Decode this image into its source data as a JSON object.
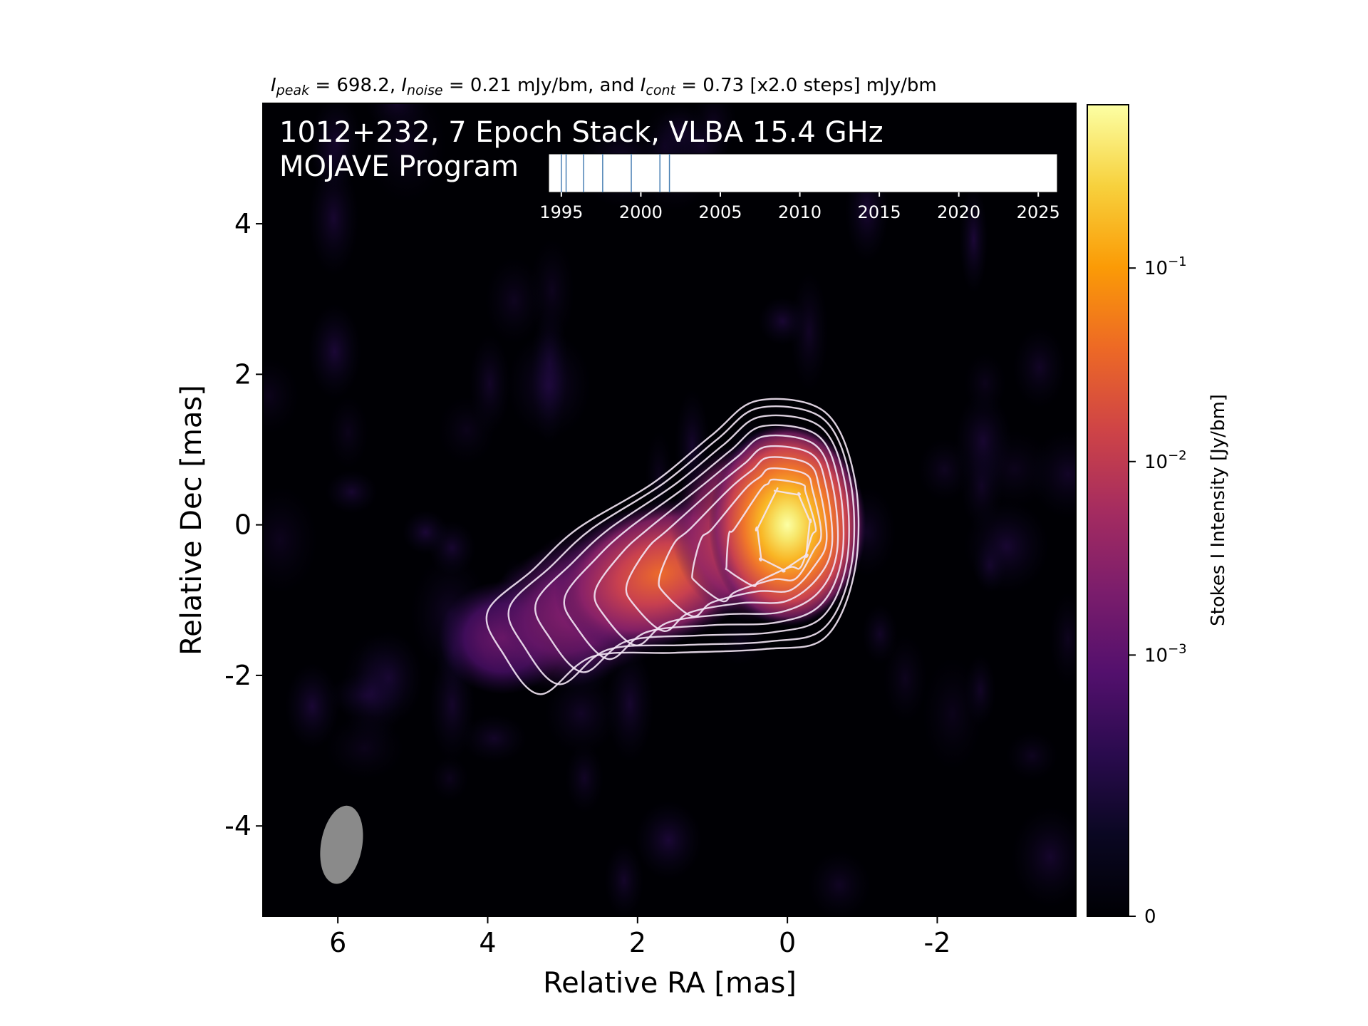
{
  "chart_data": {
    "type": "heatmap",
    "header": {
      "parts": [
        {
          "text": "I",
          "italic": true
        },
        {
          "text": "peak",
          "sub": true
        },
        {
          "text": " = 698.2, "
        },
        {
          "text": "I",
          "italic": true
        },
        {
          "text": "noise",
          "sub": true
        },
        {
          "text": " = 0.21 mJy/bm, and "
        },
        {
          "text": "I",
          "italic": true
        },
        {
          "text": "cont",
          "sub": true
        },
        {
          "text": " = 0.73 [x2.0 steps] mJy/bm"
        }
      ]
    },
    "overlay_title_line1": "1012+232, 7 Epoch Stack, VLBA 15.4 GHz",
    "overlay_title_line2": "MOJAVE Program",
    "xlabel": "Relative RA [mas]",
    "ylabel": "Relative Dec [mas]",
    "xlim": [
      7.0,
      -3.85
    ],
    "ylim": [
      -5.2,
      5.6
    ],
    "x_ticks": [
      6,
      4,
      2,
      0,
      -2
    ],
    "x_tick_labels": [
      "6",
      "4",
      "2",
      "0",
      "-2"
    ],
    "y_ticks": [
      4,
      2,
      0,
      -2,
      -4
    ],
    "y_tick_labels": [
      "4",
      "2",
      "0",
      "-2",
      "-4"
    ],
    "colormap": "inferno",
    "colorbar": {
      "label": "Stokes I Intensity [Jy/bm]",
      "scale": "log",
      "ticks": [
        {
          "value": 0,
          "label": "0"
        },
        {
          "value": 0.001,
          "label": "10^-3"
        },
        {
          "value": 0.01,
          "label": "10^-2"
        },
        {
          "value": 0.1,
          "label": "10^-1"
        }
      ]
    },
    "core": {
      "x": 0.0,
      "y": 0.0,
      "peak_jy_per_beam": 0.6982
    },
    "jet_components": [
      {
        "x": 0.0,
        "y": 0.0,
        "relative_intensity": 1.0
      },
      {
        "x": 1.7,
        "y": -0.65,
        "relative_intensity": 0.035
      },
      {
        "x": 2.9,
        "y": -1.2,
        "relative_intensity": 0.006
      },
      {
        "x": 3.8,
        "y": -1.5,
        "relative_intensity": 0.002
      }
    ],
    "contour_levels_mjy": [
      0.73,
      1.46,
      2.92,
      5.84,
      11.68,
      23.36,
      46.72,
      93.44,
      186.88,
      373.76
    ],
    "beam": {
      "x": 5.95,
      "y": -4.25,
      "major_mas": 1.05,
      "minor_mas": 0.55,
      "pa_deg": -10
    },
    "epoch_timeline": {
      "xlim": [
        1994.2,
        2026.2
      ],
      "ticks": [
        1995,
        2000,
        2005,
        2010,
        2015,
        2020,
        2025
      ],
      "tick_labels": [
        "1995",
        "2000",
        "2005",
        "2010",
        "2015",
        "2020",
        "2025"
      ],
      "epochs": [
        1995.0,
        1995.3,
        1996.4,
        1997.6,
        1999.4,
        2001.2,
        2001.8
      ]
    }
  }
}
